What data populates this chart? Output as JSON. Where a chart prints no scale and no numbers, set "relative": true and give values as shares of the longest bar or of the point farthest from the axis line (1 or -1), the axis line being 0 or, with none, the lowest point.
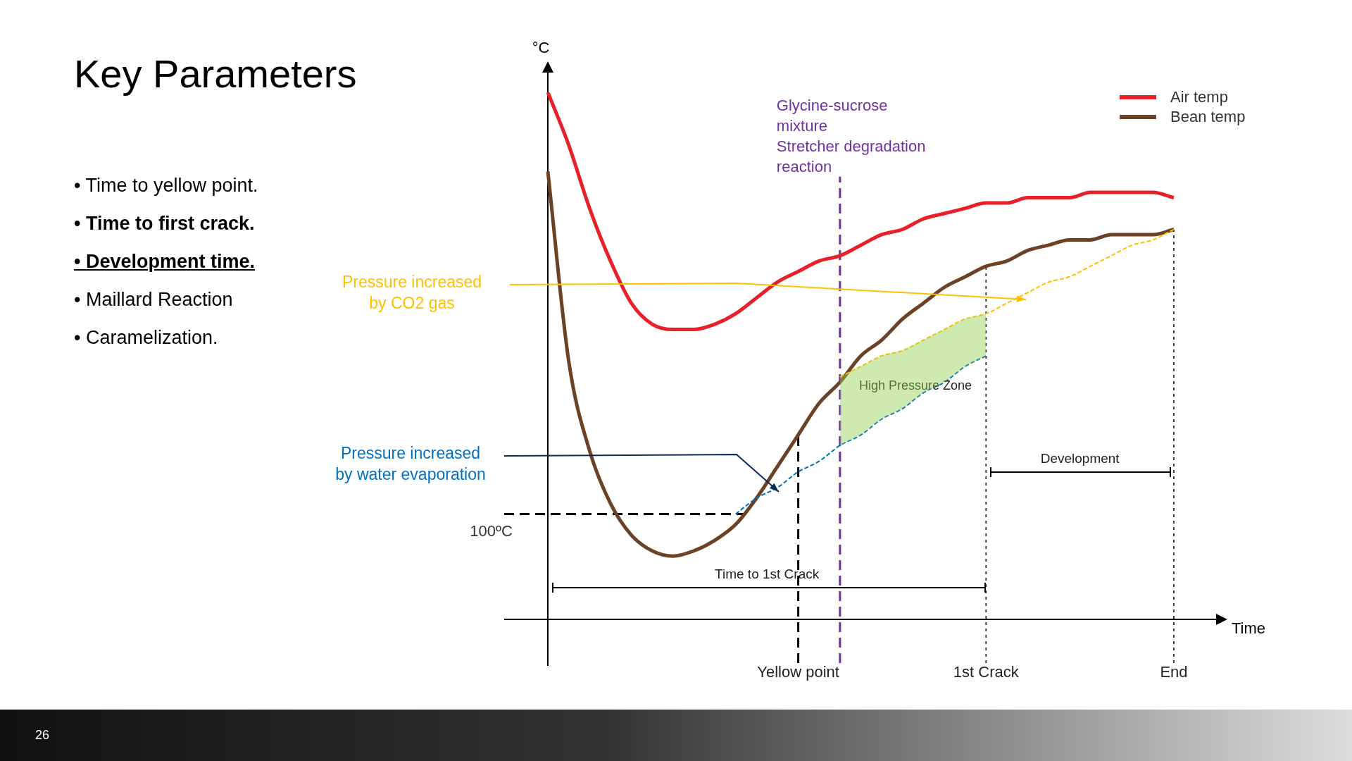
{
  "chart_data": {
    "type": "line",
    "title": "Key Parameters",
    "relative": true,
    "xlabel": "Time",
    "ylabel": "°C",
    "categories": [
      null,
      null,
      null,
      null,
      null,
      null,
      null,
      null,
      null,
      null,
      null,
      null,
      "Yellow point",
      null,
      null,
      null,
      null,
      null,
      null,
      null,
      null,
      "1st Crack",
      null,
      null,
      null,
      null,
      null,
      null,
      null,
      null,
      "End"
    ],
    "series": [
      {
        "name": "Air temp",
        "color": "#e8202a",
        "values": [
          1.0,
          0.9,
          0.78,
          0.68,
          0.6,
          0.56,
          0.55,
          0.55,
          0.56,
          0.58,
          0.61,
          0.64,
          0.66,
          0.68,
          0.69,
          0.71,
          0.73,
          0.74,
          0.76,
          0.77,
          0.78,
          0.79,
          0.79,
          0.8,
          0.8,
          0.8,
          0.81,
          0.81,
          0.81,
          0.81,
          0.8
        ]
      },
      {
        "name": "Bean temp",
        "color": "#6b4226",
        "values": [
          0.85,
          0.49,
          0.32,
          0.22,
          0.16,
          0.13,
          0.12,
          0.13,
          0.15,
          0.18,
          0.23,
          0.29,
          0.35,
          0.41,
          0.45,
          0.5,
          0.53,
          0.57,
          0.6,
          0.63,
          0.65,
          0.67,
          0.68,
          0.7,
          0.71,
          0.72,
          0.72,
          0.73,
          0.73,
          0.73,
          0.74
        ]
      },
      {
        "type": "line",
        "color": "#0070c0",
        "line_style": "dashed",
        "values": [
          null,
          null,
          null,
          null,
          null,
          null,
          null,
          null,
          null,
          0.2,
          0.23,
          0.25,
          0.28,
          0.3,
          0.33,
          0.35,
          0.38,
          0.4,
          0.43,
          0.45,
          0.48,
          0.5,
          null,
          null,
          null,
          null,
          null,
          null,
          null,
          null,
          null
        ]
      },
      {
        "type": "line",
        "color": "#ffc000",
        "line_style": "dashed",
        "values": [
          null,
          null,
          null,
          null,
          null,
          null,
          null,
          null,
          null,
          null,
          null,
          null,
          null,
          null,
          0.46,
          0.48,
          0.5,
          0.51,
          0.53,
          0.55,
          0.57,
          0.58,
          0.6,
          0.62,
          0.64,
          0.65,
          0.67,
          0.69,
          0.71,
          0.72,
          0.74
        ]
      }
    ],
    "ref_lines": [
      {
        "axis": "y",
        "value": 0.2,
        "label": "100ºC",
        "color": "#000000",
        "line_style": "dashed"
      },
      {
        "axis": "x",
        "value": "Yellow point",
        "color": "#000000",
        "line_style": "dashed"
      },
      {
        "axis": "x",
        "value": "1st Crack",
        "color": "#404040",
        "line_style": "dotted"
      },
      {
        "axis": "x",
        "value": "End",
        "color": "#404040",
        "line_style": "dotted"
      }
    ],
    "annotations": [
      "• Time to yellow point.",
      "• Time to first crack.",
      "• Development time.",
      "• Maillard Reaction",
      "• Caramelization.",
      "Pressure increased\nby CO2 gas",
      "Pressure increased\nby water evaporation",
      "High Pressure Zone",
      "Time to 1st Crack",
      "Development",
      "Glycine-sucrose\nmixture\nStretcher degradation\nreaction",
      "26"
    ],
    "legend": "top right",
    "marker": "none"
  }
}
